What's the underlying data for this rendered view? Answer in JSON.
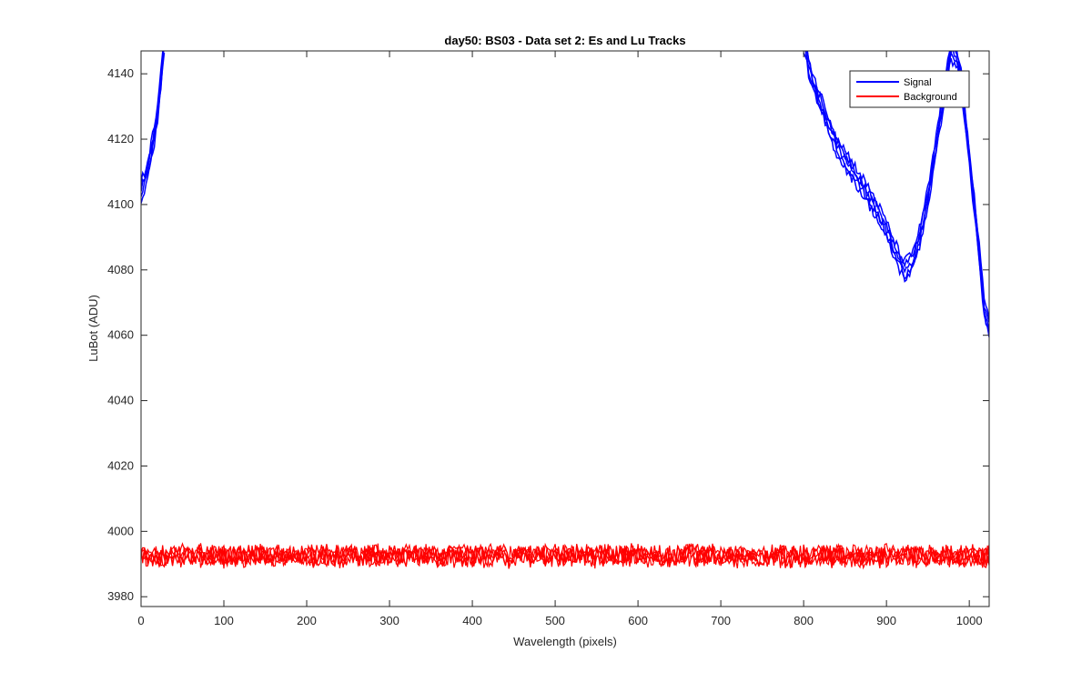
{
  "chart_data": {
    "type": "line",
    "title": "day50: BS03 - Data set 2: Es and Lu Tracks",
    "xlabel": "Wavelength (pixels)",
    "ylabel": "LuBot (ADU)",
    "xlim": [
      0,
      1024
    ],
    "ylim": [
      3977,
      4147
    ],
    "xticks": [
      0,
      100,
      200,
      300,
      400,
      500,
      600,
      700,
      800,
      900,
      1000
    ],
    "yticks": [
      3980,
      4000,
      4020,
      4040,
      4060,
      4080,
      4100,
      4120,
      4140
    ],
    "grid": false,
    "legend": {
      "position": "top-right",
      "entries": [
        "Signal",
        "Background"
      ]
    },
    "series": [
      {
        "name": "Signal",
        "color": "#0000ff",
        "tracks": 5,
        "points": [
          [
            0,
            4104
          ],
          [
            5,
            4108
          ],
          [
            10,
            4113
          ],
          [
            15,
            4120
          ],
          [
            20,
            4128
          ],
          [
            24,
            4138
          ],
          [
            28,
            4150
          ],
          [
            800,
            4150
          ],
          [
            810,
            4138
          ],
          [
            825,
            4128
          ],
          [
            840,
            4118
          ],
          [
            855,
            4112
          ],
          [
            870,
            4106
          ],
          [
            885,
            4100
          ],
          [
            900,
            4092
          ],
          [
            915,
            4083
          ],
          [
            922,
            4080
          ],
          [
            930,
            4082
          ],
          [
            940,
            4090
          ],
          [
            950,
            4102
          ],
          [
            960,
            4118
          ],
          [
            970,
            4135
          ],
          [
            978,
            4147
          ],
          [
            985,
            4145
          ],
          [
            990,
            4138
          ],
          [
            1000,
            4115
          ],
          [
            1010,
            4090
          ],
          [
            1018,
            4068
          ],
          [
            1024,
            4062
          ]
        ]
      },
      {
        "name": "Background",
        "color": "#ff0000",
        "tracks": 5,
        "mean": 3992.5,
        "noise_range": [
          3988,
          3997
        ]
      }
    ]
  }
}
